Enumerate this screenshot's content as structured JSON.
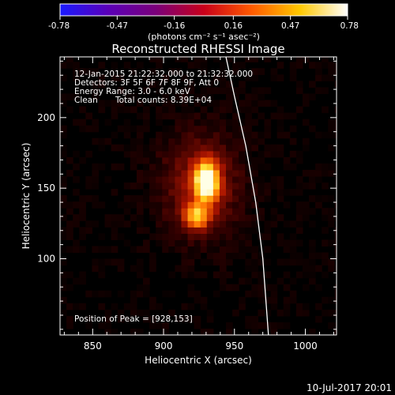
{
  "colorbar": {
    "tick_labels": [
      "-0.78",
      "-0.47",
      "-0.16",
      "0.16",
      "0.47",
      "0.78"
    ],
    "units": "(photons cm⁻² s⁻¹ asec⁻²)",
    "range": [
      -0.78,
      0.78
    ],
    "colormap": [
      "#1a1aff",
      "#5a00b8",
      "#7a007a",
      "#c8001a",
      "#ff5a00",
      "#ffc800",
      "#ffffff"
    ]
  },
  "title": "Reconstructed RHESSI Image",
  "annotations": {
    "time_range": "12-Jan-2015 21:22:32.000 to 21:32:32.000",
    "detectors": "Detectors: 3F 5F 6F 7F 8F 9F, Att 0",
    "energy_range": "Energy Range: 3.0 - 6.0 keV",
    "algorithm": "Clean",
    "total_counts": "Total counts: 8.39E+04",
    "peak_position": "Position of Peak = [928,153]"
  },
  "footer_timestamp": "10-Jul-2017 20:01",
  "chart_data": {
    "type": "heatmap",
    "title": "Reconstructed RHESSI Image",
    "xlabel": "Heliocentric X (arcsec)",
    "ylabel": "Heliocentric Y (arcsec)",
    "xlim": [
      827,
      1022
    ],
    "ylim": [
      46,
      243
    ],
    "xticks": [
      850,
      900,
      950,
      1000
    ],
    "yticks": [
      100,
      150,
      200
    ],
    "xtick_labels": [
      "850",
      "900",
      "950",
      "1000"
    ],
    "ytick_labels": [
      "100",
      "150",
      "200"
    ],
    "peak": [
      928,
      153
    ],
    "sources": [
      {
        "x": 928,
        "y": 153,
        "sigma_x": 6,
        "sigma_y": 10,
        "amplitude": 0.78
      },
      {
        "x": 921,
        "y": 128,
        "sigma_x": 6,
        "sigma_y": 6,
        "amplitude": 0.5
      },
      {
        "x": 924,
        "y": 150,
        "sigma_x": 20,
        "sigma_y": 26,
        "amplitude": 0.22
      }
    ],
    "limb": [
      [
        944,
        243
      ],
      [
        950,
        215
      ],
      [
        958,
        180
      ],
      [
        965,
        140
      ],
      [
        970,
        100
      ],
      [
        974,
        46
      ]
    ]
  }
}
